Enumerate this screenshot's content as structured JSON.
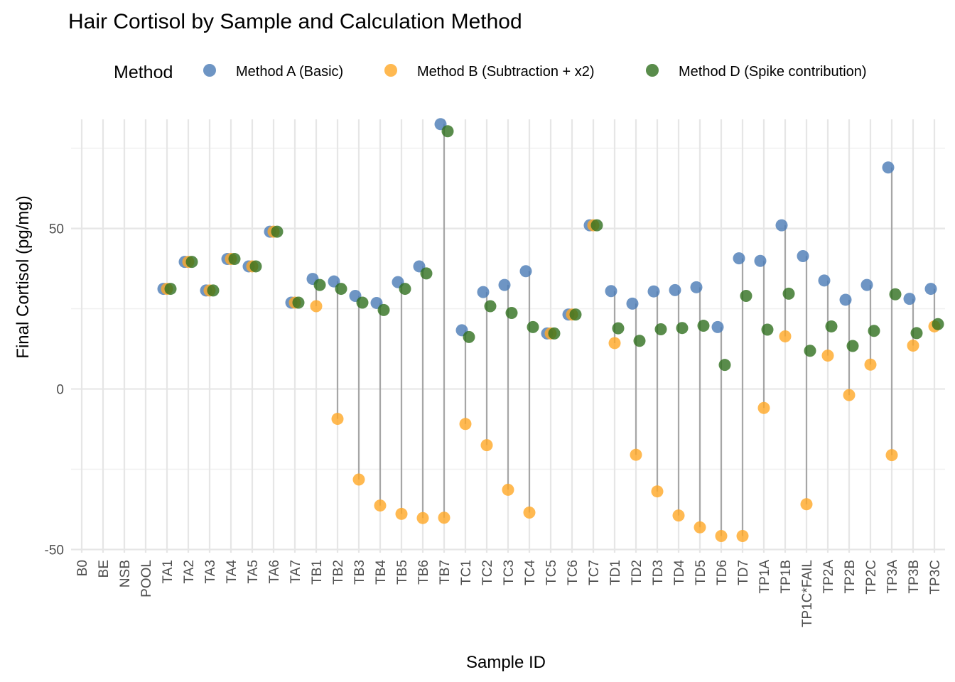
{
  "chart_data": {
    "type": "scatter",
    "title": "Hair Cortisol by Sample and Calculation Method",
    "xlabel": "Sample ID",
    "ylabel": "Final Cortisol (pg/mg)",
    "legend_title": "Method",
    "legend_position": "top",
    "grid": true,
    "ylim": [
      -51,
      84
    ],
    "y_ticks": [
      -50,
      0,
      50
    ],
    "categories": [
      "B0",
      "BE",
      "NSB",
      "POOL",
      "TA1",
      "TA2",
      "TA3",
      "TA4",
      "TA5",
      "TA6",
      "TA7",
      "TB1",
      "TB2",
      "TB3",
      "TB4",
      "TB5",
      "TB6",
      "TB7",
      "TC1",
      "TC2",
      "TC3",
      "TC4",
      "TC5",
      "TC6",
      "TC7",
      "TD1",
      "TD2",
      "TD3",
      "TD4",
      "TD5",
      "TD6",
      "TD7",
      "TP1A",
      "TP1B",
      "TP1C*FAIL",
      "TP2A",
      "TP2B",
      "TP2C",
      "TP3A",
      "TP3B",
      "TP3C"
    ],
    "series": [
      {
        "name": "Method A (Basic)",
        "color": "#4a7ab5",
        "values": [
          null,
          null,
          null,
          null,
          31.2,
          39.6,
          30.7,
          40.5,
          38.2,
          49.0,
          26.9,
          34.3,
          33.5,
          29.0,
          26.8,
          33.3,
          38.2,
          82.5,
          18.3,
          30.2,
          32.4,
          36.7,
          17.3,
          23.2,
          51.0,
          30.5,
          26.6,
          30.4,
          30.8,
          31.7,
          19.3,
          40.7,
          39.9,
          51.0,
          41.4,
          33.8,
          27.8,
          32.4,
          69.0,
          28.1,
          31.2
        ]
      },
      {
        "name": "Method B (Subtraction + x2)",
        "color": "#ffa726",
        "values": [
          null,
          null,
          null,
          null,
          31.2,
          39.6,
          30.7,
          40.5,
          38.2,
          49.0,
          26.9,
          25.8,
          -9.3,
          -28.2,
          -36.3,
          -38.9,
          -40.2,
          -40.1,
          -10.9,
          -17.5,
          -31.4,
          -38.5,
          17.3,
          23.2,
          51.0,
          14.3,
          -20.5,
          -31.9,
          -39.4,
          -43.1,
          -45.8,
          -45.8,
          -5.9,
          16.4,
          -35.9,
          10.4,
          -1.9,
          7.6,
          -20.6,
          13.5,
          19.5
        ]
      },
      {
        "name": "Method D (Spike contribution)",
        "color": "#2f6f1e",
        "values": [
          null,
          null,
          null,
          null,
          31.2,
          39.6,
          30.7,
          40.5,
          38.2,
          49.0,
          26.9,
          32.4,
          31.2,
          26.9,
          24.6,
          31.2,
          36.0,
          80.3,
          16.2,
          25.8,
          23.7,
          19.3,
          17.3,
          23.2,
          51.0,
          18.9,
          15.0,
          18.6,
          19.0,
          19.7,
          7.5,
          29.0,
          18.5,
          29.7,
          11.9,
          19.5,
          13.4,
          18.1,
          29.5,
          17.4,
          20.2
        ]
      }
    ]
  }
}
